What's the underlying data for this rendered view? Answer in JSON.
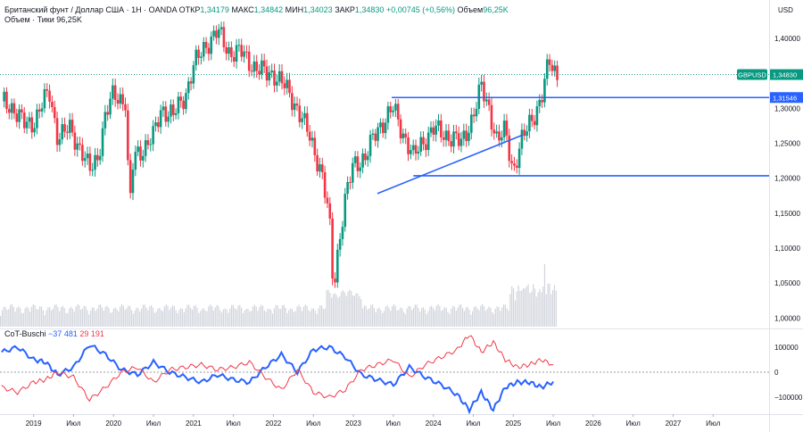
{
  "header": {
    "symbol_title": "Британский фунт / Доллар США · 1Н · OANDA",
    "open_label": "ОТКР",
    "open_value": "1,34179",
    "high_label": "МАКС",
    "high_value": "1,34842",
    "low_label": "МИН",
    "low_value": "1,34023",
    "close_label": "ЗАКР",
    "close_value": "1,34830",
    "change_value": "+0,00745 (+0,56%)",
    "volume_label": "Объем",
    "volume_value": "96,25K"
  },
  "volume_legend": {
    "label": "Объем · Тики",
    "value": "96,25K"
  },
  "cot_legend": {
    "label": "CoT-Buschi",
    "value1": "−37 481",
    "value2": "29 191"
  },
  "currency_label": "USD",
  "colors": {
    "up": "#089981",
    "down": "#f23645",
    "trendline": "#2962ff",
    "cot_pos": "#f23645",
    "cot_neg": "#2962ff",
    "volume": "#d1d4dc",
    "grid": "#e0e3eb"
  },
  "chart_data": [
    {
      "type": "candlestick",
      "title": "GBPUSD",
      "ylabel": "USD",
      "ylim": [
        0.985,
        1.455
      ],
      "price_ticks": [
        "1,40000",
        "1,35000",
        "1,30000",
        "1,25000",
        "1,20000",
        "1,15000",
        "1,10000",
        "1,05000",
        "1,00000"
      ],
      "price_tick_values": [
        1.4,
        1.35,
        1.3,
        1.25,
        1.2,
        1.15,
        1.1,
        1.05,
        1.0
      ],
      "x_ticks": [
        "2019",
        "Июл",
        "2020",
        "Июл",
        "2021",
        "Июл",
        "2022",
        "Июл",
        "2023",
        "Июл",
        "2024",
        "Июл",
        "2025",
        "Июл",
        "2026",
        "Июл",
        "2027",
        "Июл"
      ],
      "x_tick_values": [
        2019.0,
        2019.5,
        2020.0,
        2020.5,
        2021.0,
        2021.5,
        2022.0,
        2022.5,
        2023.0,
        2023.5,
        2024.0,
        2024.5,
        2025.0,
        2025.5,
        2026.0,
        2026.5,
        2027.0,
        2027.5
      ],
      "price_path_x": [
        2018.6,
        2018.75,
        2018.9,
        2019.0,
        2019.12,
        2019.2,
        2019.3,
        2019.45,
        2019.6,
        2019.7,
        2019.8,
        2019.9,
        2020.0,
        2020.15,
        2020.2,
        2020.25,
        2020.35,
        2020.5,
        2020.6,
        2020.75,
        2020.9,
        2021.0,
        2021.15,
        2021.3,
        2021.45,
        2021.6,
        2021.75,
        2021.9,
        2022.0,
        2022.15,
        2022.3,
        2022.45,
        2022.6,
        2022.7,
        2022.75,
        2022.82,
        2022.9,
        2023.0,
        2023.15,
        2023.3,
        2023.5,
        2023.6,
        2023.75,
        2023.85,
        2024.0,
        2024.2,
        2024.35,
        2024.5,
        2024.6,
        2024.7,
        2024.8,
        2024.9,
        2025.0,
        2025.1,
        2025.2,
        2025.35,
        2025.45,
        2025.55
      ],
      "price_path_y": [
        1.31,
        1.3,
        1.275,
        1.28,
        1.31,
        1.32,
        1.26,
        1.27,
        1.24,
        1.21,
        1.23,
        1.29,
        1.32,
        1.31,
        1.15,
        1.23,
        1.24,
        1.26,
        1.3,
        1.29,
        1.32,
        1.36,
        1.39,
        1.41,
        1.38,
        1.38,
        1.36,
        1.35,
        1.35,
        1.33,
        1.3,
        1.26,
        1.21,
        1.14,
        1.04,
        1.11,
        1.17,
        1.22,
        1.23,
        1.27,
        1.3,
        1.27,
        1.23,
        1.25,
        1.27,
        1.26,
        1.25,
        1.29,
        1.33,
        1.3,
        1.25,
        1.27,
        1.21,
        1.25,
        1.28,
        1.31,
        1.37,
        1.348
      ],
      "last_price": 1.3483,
      "last_price_label": "1,34830",
      "symbol_label": "GBPUSD",
      "level_label": "1,31546",
      "horizontal_levels": [
        1.31546,
        1.2035
      ],
      "level_spans": [
        [
          2023.48,
          2028.2
        ],
        [
          2023.75,
          2028.2
        ]
      ],
      "trendline": {
        "x": [
          2023.3,
          2025.12
        ],
        "y": [
          1.178,
          1.262
        ]
      }
    },
    {
      "type": "bar",
      "title": "Объем",
      "note": "tick volume histogram at bottom of main pane",
      "ylim": [
        0,
        120000
      ]
    },
    {
      "type": "line",
      "title": "CoT-Buschi",
      "ylim": [
        -160000,
        160000
      ],
      "y_ticks": [
        "100000",
        "0",
        "−100000"
      ],
      "y_tick_values": [
        100000,
        0,
        -100000
      ],
      "series": [
        {
          "name": "-37 481",
          "color": "#2962ff",
          "x": [
            2018.6,
            2018.8,
            2019.0,
            2019.15,
            2019.3,
            2019.5,
            2019.7,
            2019.9,
            2020.1,
            2020.3,
            2020.5,
            2020.7,
            2020.9,
            2021.1,
            2021.3,
            2021.5,
            2021.7,
            2021.9,
            2022.1,
            2022.3,
            2022.5,
            2022.7,
            2022.9,
            2023.1,
            2023.3,
            2023.5,
            2023.7,
            2023.9,
            2024.1,
            2024.3,
            2024.45,
            2024.6,
            2024.75,
            2024.9,
            2025.05,
            2025.2,
            2025.35,
            2025.5
          ],
          "y": [
            80000,
            100000,
            50000,
            40000,
            -10000,
            20000,
            110000,
            70000,
            10000,
            -10000,
            40000,
            0,
            -20000,
            -40000,
            -10000,
            -30000,
            -40000,
            20000,
            70000,
            0,
            90000,
            100000,
            60000,
            -10000,
            -30000,
            -50000,
            20000,
            -20000,
            -50000,
            -90000,
            -150000,
            -80000,
            -150000,
            -60000,
            -40000,
            -40000,
            -60000,
            -37481
          ]
        },
        {
          "name": "29 191",
          "color": "#f23645",
          "x": [
            2018.6,
            2018.8,
            2019.0,
            2019.15,
            2019.3,
            2019.5,
            2019.7,
            2019.9,
            2020.1,
            2020.3,
            2020.5,
            2020.7,
            2020.9,
            2021.1,
            2021.3,
            2021.5,
            2021.7,
            2021.9,
            2022.1,
            2022.3,
            2022.5,
            2022.7,
            2022.9,
            2023.1,
            2023.3,
            2023.5,
            2023.7,
            2023.9,
            2024.1,
            2024.3,
            2024.45,
            2024.6,
            2024.75,
            2024.9,
            2025.05,
            2025.2,
            2025.35,
            2025.5
          ],
          "y": [
            -60000,
            -80000,
            -40000,
            -30000,
            0,
            -20000,
            -110000,
            -60000,
            0,
            20000,
            -40000,
            10000,
            20000,
            30000,
            10000,
            20000,
            40000,
            -20000,
            -70000,
            10000,
            -80000,
            -100000,
            -70000,
            10000,
            30000,
            50000,
            -20000,
            30000,
            60000,
            90000,
            150000,
            80000,
            120000,
            50000,
            20000,
            30000,
            50000,
            29191
          ]
        }
      ]
    }
  ]
}
